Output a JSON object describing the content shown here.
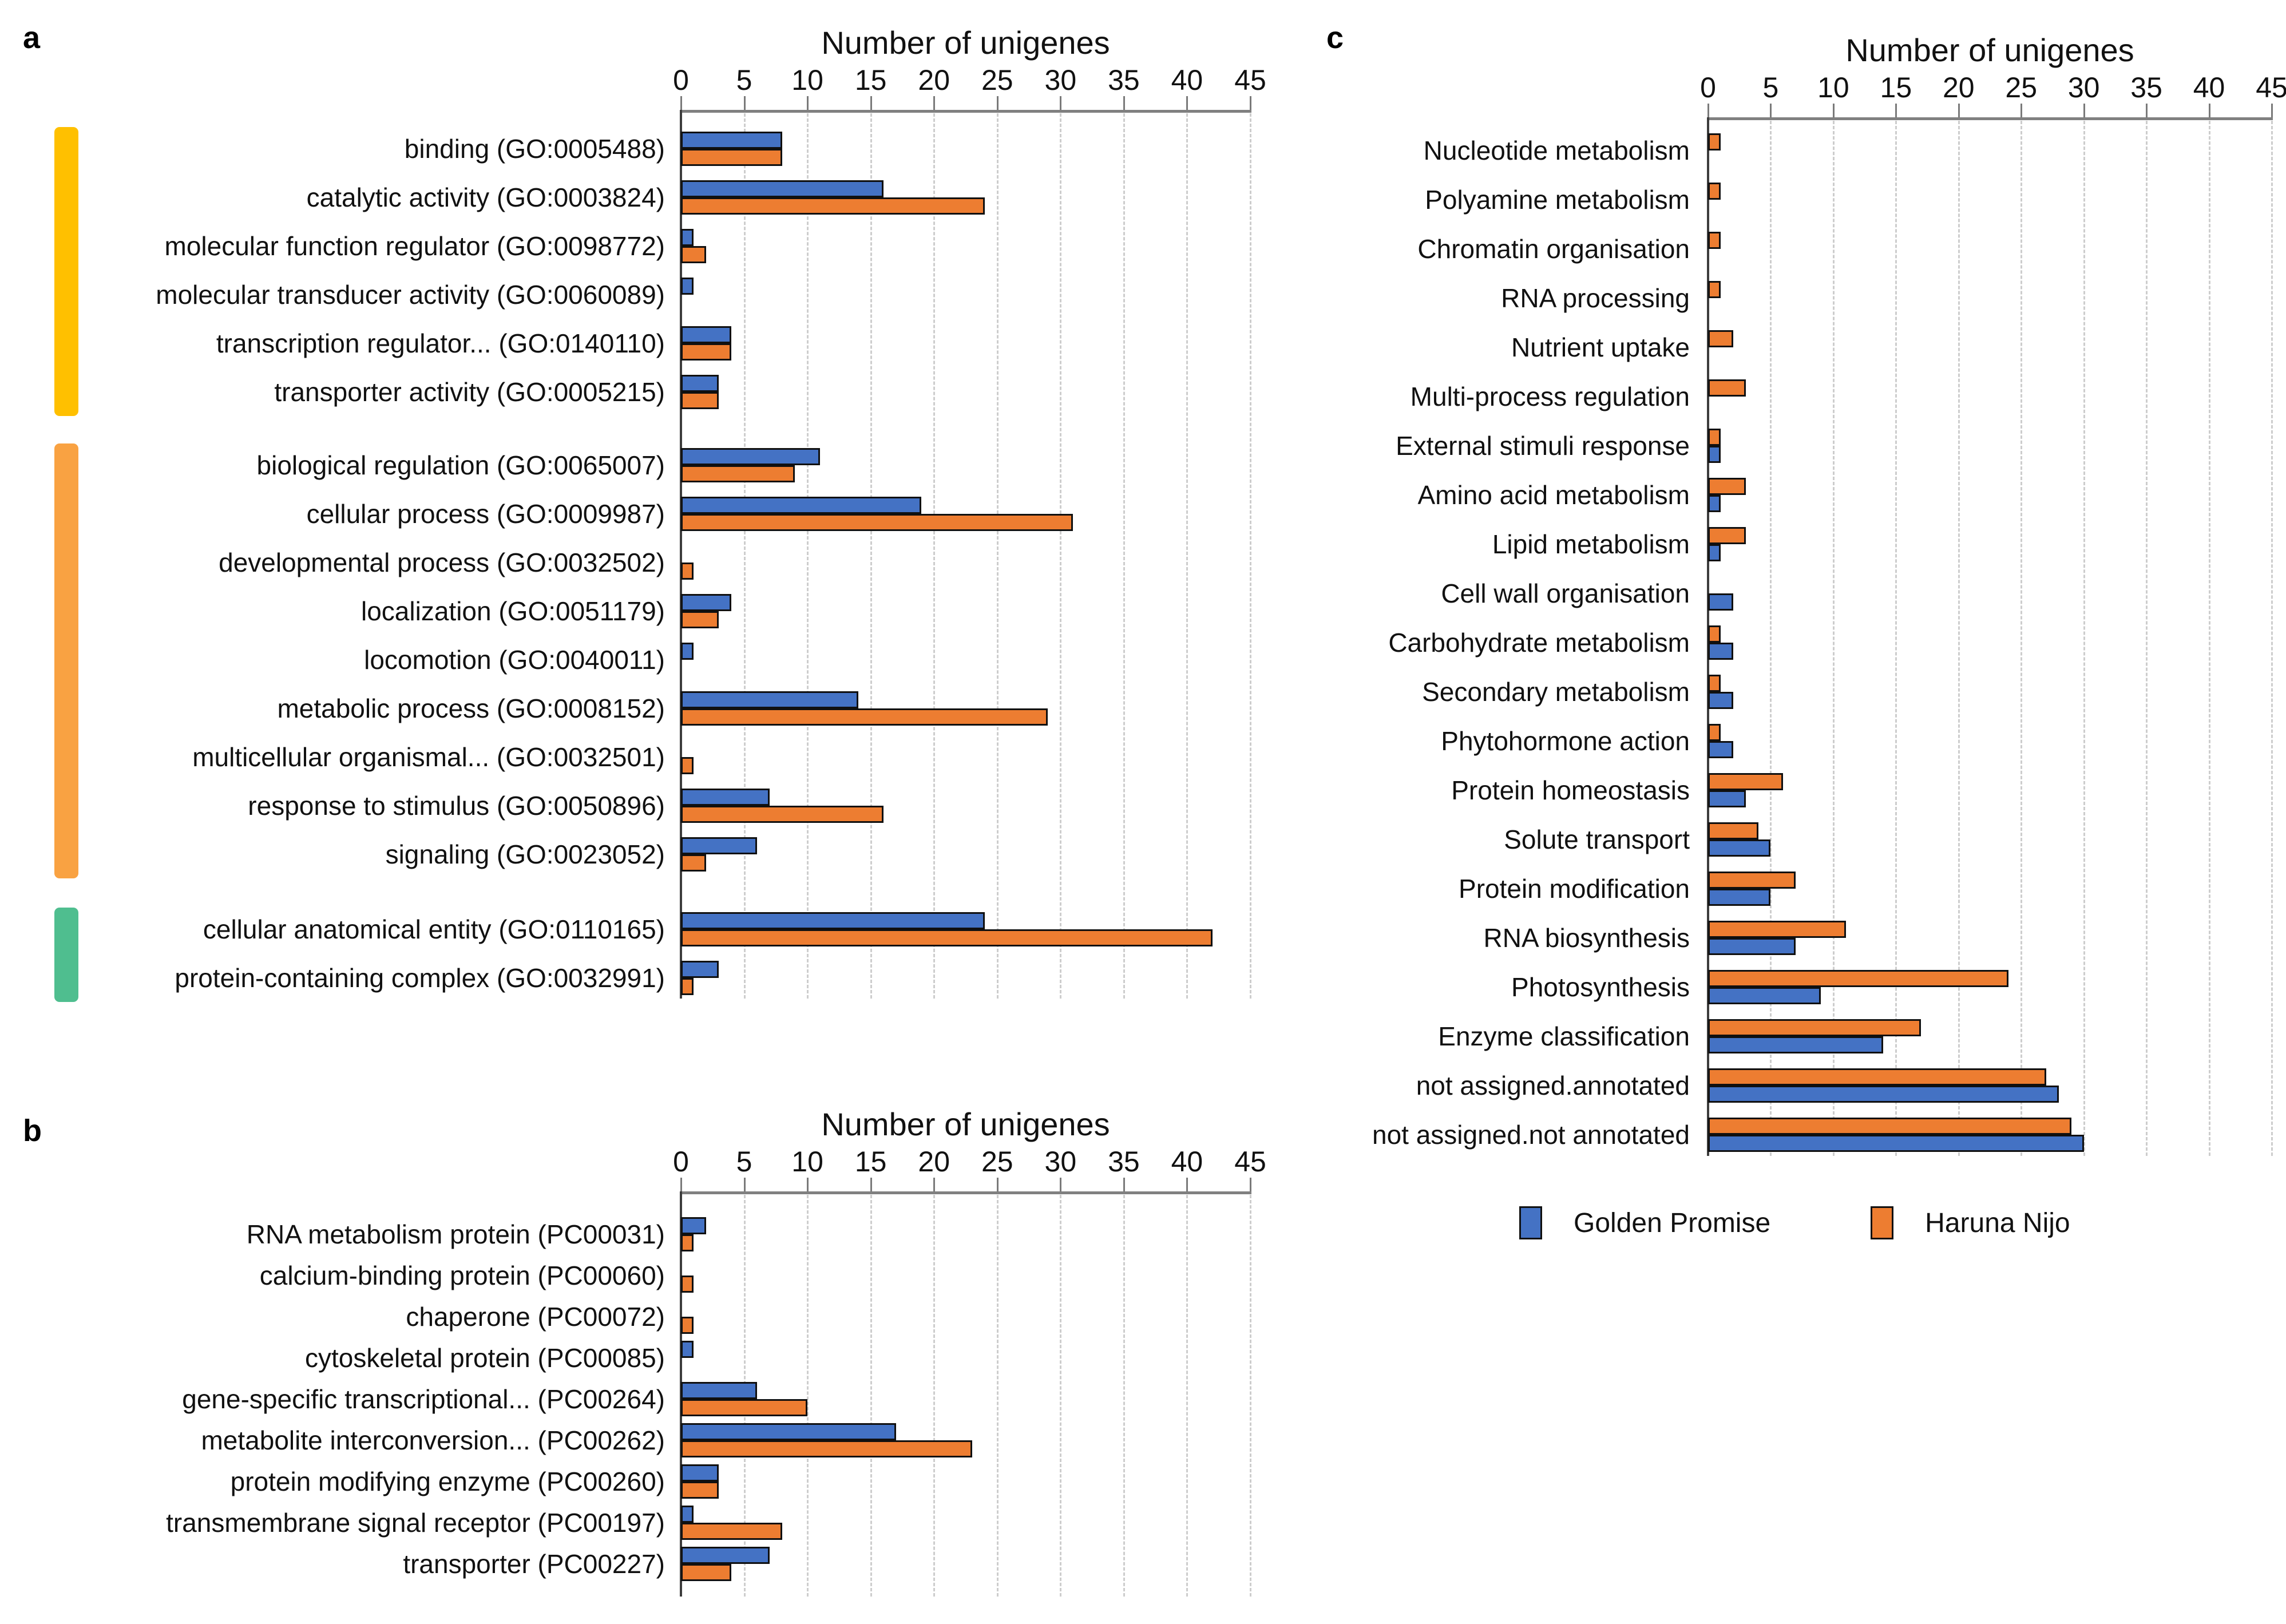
{
  "figure": {
    "axis_title": "Number of unigenes",
    "series": [
      {
        "key": "gp",
        "label": "Golden Promise",
        "color": "#4472C4"
      },
      {
        "key": "hn",
        "label": "Haruna Nijo",
        "color": "#ED7D31"
      }
    ]
  },
  "chart_data": [
    {
      "id": "a",
      "type": "bar",
      "orientation": "horizontal",
      "panel_label": "a",
      "title": "Number of unigenes",
      "xlim": [
        0,
        45
      ],
      "ticks": [
        0,
        5,
        10,
        15,
        20,
        25,
        30,
        35,
        40,
        45
      ],
      "grid": true,
      "series_order": [
        "gp",
        "hn"
      ],
      "sections": [
        {
          "key": "molecular-function",
          "color": "#FFC000",
          "rows": [
            {
              "label": "binding (GO:0005488)",
              "gp": 8,
              "hn": 8
            },
            {
              "label": "catalytic activity (GO:0003824)",
              "gp": 16,
              "hn": 24
            },
            {
              "label": "molecular function regulator (GO:0098772)",
              "gp": 1,
              "hn": 2
            },
            {
              "label": "molecular transducer activity (GO:0060089)",
              "gp": 1,
              "hn": 0
            },
            {
              "label": "transcription regulator... (GO:0140110)",
              "gp": 4,
              "hn": 4
            },
            {
              "label": "transporter activity (GO:0005215)",
              "gp": 3,
              "hn": 3
            }
          ]
        },
        {
          "key": "biological-process",
          "color": "#F9A242",
          "rows": [
            {
              "label": "biological regulation (GO:0065007)",
              "gp": 11,
              "hn": 9
            },
            {
              "label": "cellular process (GO:0009987)",
              "gp": 19,
              "hn": 31
            },
            {
              "label": "developmental process (GO:0032502)",
              "gp": 0,
              "hn": 1
            },
            {
              "label": "localization (GO:0051179)",
              "gp": 4,
              "hn": 3
            },
            {
              "label": "locomotion (GO:0040011)",
              "gp": 1,
              "hn": 0
            },
            {
              "label": "metabolic process (GO:0008152)",
              "gp": 14,
              "hn": 29
            },
            {
              "label": "multicellular organismal... (GO:0032501)",
              "gp": 0,
              "hn": 1
            },
            {
              "label": "response to stimulus (GO:0050896)",
              "gp": 7,
              "hn": 16
            },
            {
              "label": "signaling (GO:0023052)",
              "gp": 6,
              "hn": 2
            }
          ]
        },
        {
          "key": "cellular-component",
          "color": "#4FBE8F",
          "rows": [
            {
              "label": "cellular anatomical entity (GO:0110165)",
              "gp": 24,
              "hn": 42
            },
            {
              "label": "protein-containing complex (GO:0032991)",
              "gp": 3,
              "hn": 1
            }
          ]
        }
      ]
    },
    {
      "id": "b",
      "type": "bar",
      "orientation": "horizontal",
      "panel_label": "b",
      "title": "Number of unigenes",
      "xlim": [
        0,
        45
      ],
      "ticks": [
        0,
        5,
        10,
        15,
        20,
        25,
        30,
        35,
        40,
        45
      ],
      "grid": true,
      "series_order": [
        "gp",
        "hn"
      ],
      "sections": [
        {
          "key": "protein-class",
          "color": null,
          "rows": [
            {
              "label": "RNA metabolism protein (PC00031)",
              "gp": 2,
              "hn": 1
            },
            {
              "label": "calcium-binding protein (PC00060)",
              "gp": 0,
              "hn": 1
            },
            {
              "label": "chaperone (PC00072)",
              "gp": 0,
              "hn": 1
            },
            {
              "label": "cytoskeletal protein (PC00085)",
              "gp": 1,
              "hn": 0
            },
            {
              "label": "gene-specific transcriptional... (PC00264)",
              "gp": 6,
              "hn": 10
            },
            {
              "label": "metabolite interconversion... (PC00262)",
              "gp": 17,
              "hn": 23
            },
            {
              "label": "protein modifying enzyme (PC00260)",
              "gp": 3,
              "hn": 3
            },
            {
              "label": "transmembrane signal receptor (PC00197)",
              "gp": 1,
              "hn": 8
            },
            {
              "label": "transporter (PC00227)",
              "gp": 7,
              "hn": 4
            }
          ]
        }
      ]
    },
    {
      "id": "c",
      "type": "bar",
      "orientation": "horizontal",
      "panel_label": "c",
      "title": "Number of unigenes",
      "xlim": [
        0,
        45
      ],
      "ticks": [
        0,
        5,
        10,
        15,
        20,
        25,
        30,
        35,
        40,
        45
      ],
      "grid": true,
      "series_order": [
        "hn",
        "gp"
      ],
      "sections": [
        {
          "key": "mapman-bins",
          "color": null,
          "rows": [
            {
              "label": "Nucleotide metabolism",
              "gp": 0,
              "hn": 1
            },
            {
              "label": "Polyamine metabolism",
              "gp": 0,
              "hn": 1
            },
            {
              "label": "Chromatin organisation",
              "gp": 0,
              "hn": 1
            },
            {
              "label": "RNA processing",
              "gp": 0,
              "hn": 1
            },
            {
              "label": "Nutrient uptake",
              "gp": 0,
              "hn": 2
            },
            {
              "label": "Multi-process regulation",
              "gp": 0,
              "hn": 3
            },
            {
              "label": "External stimuli response",
              "gp": 1,
              "hn": 1
            },
            {
              "label": "Amino acid metabolism",
              "gp": 1,
              "hn": 3
            },
            {
              "label": "Lipid metabolism",
              "gp": 1,
              "hn": 3
            },
            {
              "label": "Cell wall organisation",
              "gp": 2,
              "hn": 0
            },
            {
              "label": "Carbohydrate metabolism",
              "gp": 2,
              "hn": 1
            },
            {
              "label": "Secondary metabolism",
              "gp": 2,
              "hn": 1
            },
            {
              "label": "Phytohormone action",
              "gp": 2,
              "hn": 1
            },
            {
              "label": "Protein homeostasis",
              "gp": 3,
              "hn": 6
            },
            {
              "label": "Solute transport",
              "gp": 5,
              "hn": 4
            },
            {
              "label": "Protein modification",
              "gp": 5,
              "hn": 7
            },
            {
              "label": "RNA biosynthesis",
              "gp": 7,
              "hn": 11
            },
            {
              "label": "Photosynthesis",
              "gp": 9,
              "hn": 24
            },
            {
              "label": "Enzyme classification",
              "gp": 14,
              "hn": 17
            },
            {
              "label": "not assigned.annotated",
              "gp": 28,
              "hn": 27
            },
            {
              "label": "not assigned.not annotated",
              "gp": 30,
              "hn": 29
            }
          ]
        }
      ]
    }
  ],
  "legend": {
    "items": [
      {
        "label": "Golden Promise",
        "color": "#4472C4"
      },
      {
        "label": "Haruna Nijo",
        "color": "#ED7D31"
      }
    ]
  }
}
